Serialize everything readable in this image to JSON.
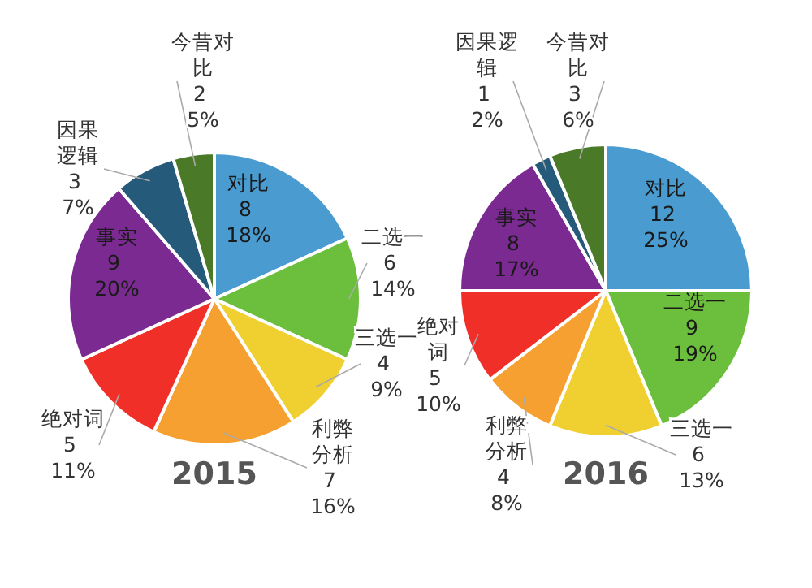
{
  "chart_data": [
    {
      "type": "pie",
      "title": "2015",
      "categories": [
        "对比",
        "二选一",
        "三选一",
        "利弊分析",
        "绝对词",
        "事实",
        "因果逻辑",
        "今昔对比"
      ],
      "values": [
        8,
        6,
        4,
        7,
        5,
        9,
        3,
        2
      ],
      "colors": [
        "#4a9bd0",
        "#6cbf3c",
        "#f0d030",
        "#f5a030",
        "#f03028",
        "#7a2a90",
        "#255a7a",
        "#4a7a28"
      ],
      "value_labels": [
        "8 18%",
        "6 14%",
        "4 9%",
        "7 16%",
        "5 11%",
        "9 20%",
        "3 7%",
        "2 5%"
      ]
    },
    {
      "type": "pie",
      "title": "2016",
      "categories": [
        "对比",
        "二选一",
        "三选一",
        "利弊分析",
        "绝对词",
        "事实",
        "因果逻辑",
        "今昔对比"
      ],
      "values": [
        12,
        9,
        6,
        4,
        5,
        8,
        1,
        3
      ],
      "colors": [
        "#4a9bd0",
        "#6cbf3c",
        "#f0d030",
        "#f5a030",
        "#f03028",
        "#7a2a90",
        "#255a7a",
        "#4a7a28"
      ],
      "value_labels": [
        "12 25%",
        "9 19%",
        "6 13%",
        "4 8%",
        "5 10%",
        "8 17%",
        "1 2%",
        "3 6%"
      ]
    }
  ]
}
